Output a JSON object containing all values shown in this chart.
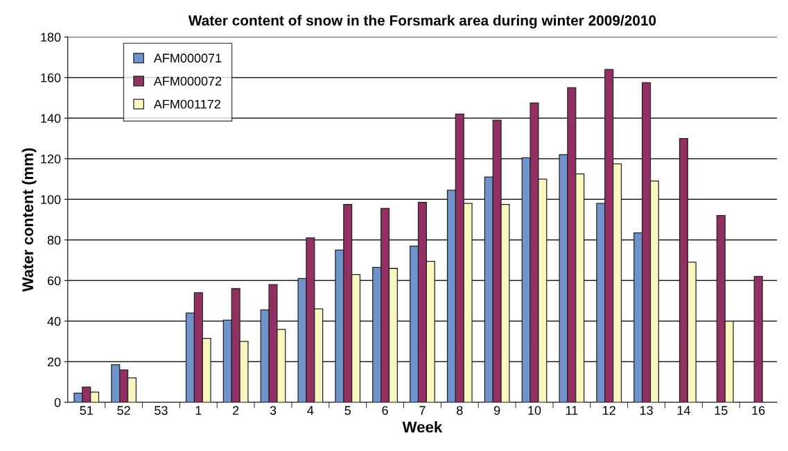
{
  "chart_data": {
    "type": "bar",
    "title": "Water content of snow in the Forsmark area during winter 2009/2010",
    "xlabel": "Week",
    "ylabel": "Water content (mm)",
    "categories": [
      "51",
      "52",
      "53",
      "1",
      "2",
      "3",
      "4",
      "5",
      "6",
      "7",
      "8",
      "9",
      "10",
      "11",
      "12",
      "13",
      "14",
      "15",
      "16"
    ],
    "series": [
      {
        "name": "AFM000071",
        "color": "#7093cc",
        "values": [
          4.5,
          18.5,
          null,
          44,
          40.5,
          45.5,
          61,
          75,
          66.5,
          77,
          104.5,
          111,
          120.5,
          122,
          98,
          83.5,
          null,
          null,
          null
        ]
      },
      {
        "name": "AFM000072",
        "color": "#933063",
        "values": [
          7.5,
          16,
          null,
          54,
          56,
          58,
          81,
          97.5,
          95.5,
          98.5,
          142,
          139,
          147.5,
          155,
          164,
          157.5,
          130,
          92,
          62
        ]
      },
      {
        "name": "AFM001172",
        "color": "#faf6c0",
        "values": [
          5,
          12,
          null,
          31.5,
          30,
          36,
          46,
          63,
          66,
          69.5,
          98,
          97.5,
          110,
          112.5,
          117.5,
          109,
          69,
          40,
          null
        ]
      }
    ],
    "ylim": [
      0,
      180
    ],
    "yticks": [
      0,
      20,
      40,
      60,
      80,
      100,
      120,
      140,
      160,
      180
    ],
    "grid": "y",
    "legend": "top left"
  }
}
